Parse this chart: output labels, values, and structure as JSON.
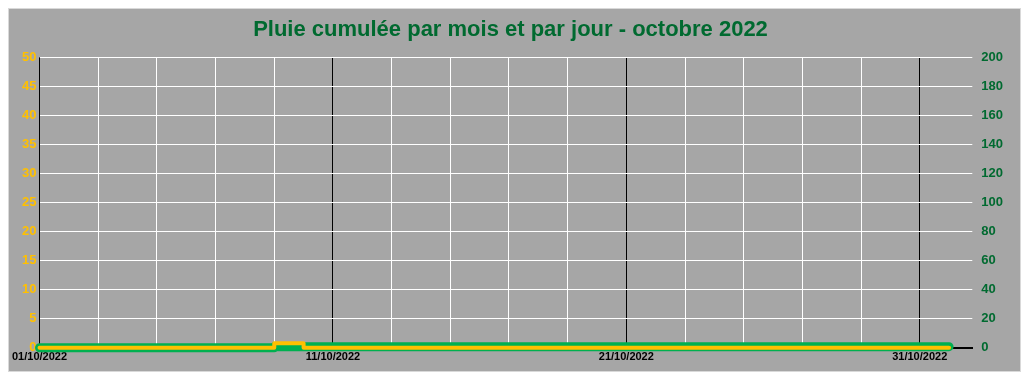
{
  "chart_data": {
    "type": "step",
    "title": "Pluie cumulée par mois et par jour - octobre 2022",
    "x": [
      "2022-10-01",
      "2022-10-02",
      "2022-10-03",
      "2022-10-04",
      "2022-10-05",
      "2022-10-06",
      "2022-10-07",
      "2022-10-08",
      "2022-10-09",
      "2022-10-10",
      "2022-10-11",
      "2022-10-12",
      "2022-10-13",
      "2022-10-14",
      "2022-10-15",
      "2022-10-16",
      "2022-10-17",
      "2022-10-18",
      "2022-10-19",
      "2022-10-20",
      "2022-10-21",
      "2022-10-22",
      "2022-10-23",
      "2022-10-24",
      "2022-10-25",
      "2022-10-26",
      "2022-10-27",
      "2022-10-28",
      "2022-10-29",
      "2022-10-30",
      "2022-10-31",
      "2022-11-01"
    ],
    "series": [
      {
        "color": "#ffc000",
        "values": [
          0,
          0,
          0,
          0,
          0,
          0,
          0,
          0,
          0,
          0.8,
          0,
          0,
          0,
          0,
          0,
          0,
          0,
          0,
          0,
          0,
          0,
          0,
          0,
          0,
          0,
          0,
          0,
          0,
          0,
          0,
          0,
          0
        ]
      },
      {
        "color": "#00b050",
        "axis": "y2",
        "values": [
          0,
          0,
          0,
          0,
          0,
          0,
          0,
          0,
          0,
          0.8,
          0.8,
          0.8,
          0.8,
          0.8,
          0.8,
          0.8,
          0.8,
          0.8,
          0.8,
          0.8,
          0.8,
          0.8,
          0.8,
          0.8,
          0.8,
          0.8,
          0.8,
          0.8,
          0.8,
          0.8,
          0.8,
          0.8
        ]
      }
    ],
    "xlim": [
      "2022-10-01",
      "2022-11-01T19:00"
    ],
    "xticks": [
      {
        "value": "2022-10-01",
        "label": "01/10/2022"
      },
      {
        "value": "2022-10-03",
        "label": null
      },
      {
        "value": "2022-10-05",
        "label": null
      },
      {
        "value": "2022-10-07",
        "label": null
      },
      {
        "value": "2022-10-09",
        "label": null
      },
      {
        "value": "2022-10-11",
        "label": "11/10/2022"
      },
      {
        "value": "2022-10-13",
        "label": null
      },
      {
        "value": "2022-10-15",
        "label": null
      },
      {
        "value": "2022-10-17",
        "label": null
      },
      {
        "value": "2022-10-19",
        "label": null
      },
      {
        "value": "2022-10-21",
        "label": "21/10/2022"
      },
      {
        "value": "2022-10-23",
        "label": null
      },
      {
        "value": "2022-10-25",
        "label": null
      },
      {
        "value": "2022-10-27",
        "label": null
      },
      {
        "value": "2022-10-29",
        "label": null
      },
      {
        "value": "2022-10-31",
        "label": "31/10/2022"
      }
    ],
    "ylim": [
      0,
      50
    ],
    "yticks": [
      0,
      5,
      10,
      15,
      20,
      25,
      30,
      35,
      40,
      45,
      50
    ],
    "y2lim": [
      0,
      200
    ],
    "y2ticks": [
      0,
      20,
      40,
      60,
      80,
      100,
      120,
      140,
      160,
      180,
      200
    ],
    "grid": true,
    "marker": "none",
    "legend": false
  }
}
